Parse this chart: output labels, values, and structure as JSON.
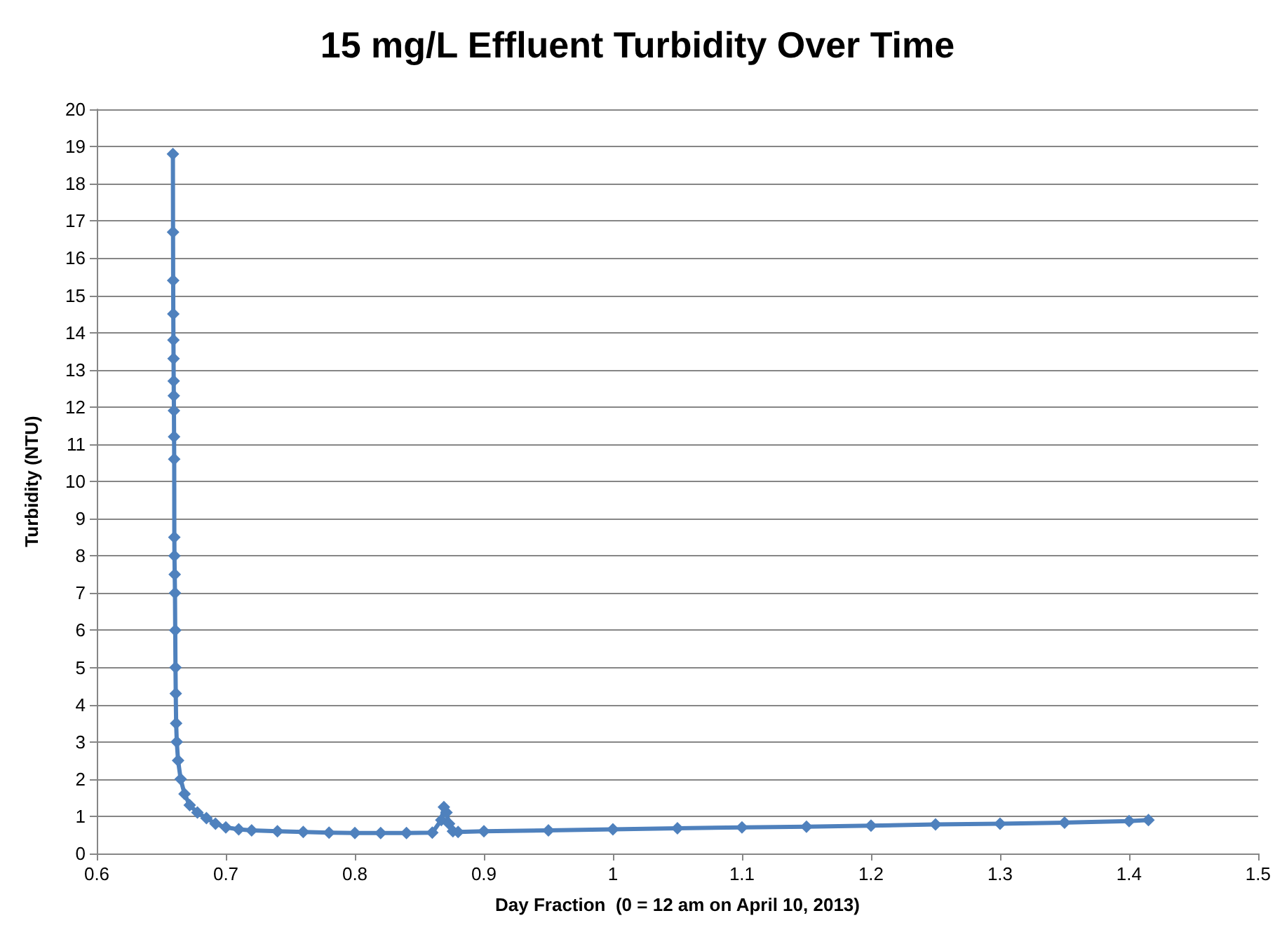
{
  "chart_data": {
    "type": "line",
    "title": "15 mg/L Effluent Turbidity Over Time",
    "xlabel": "Day Fraction  (0 = 12 am on April 10, 2013)",
    "ylabel": "Turbidity (NTU)",
    "series": [
      {
        "color": "#4f81bd",
        "x": [
          0.659,
          0.6591,
          0.6592,
          0.6593,
          0.6594,
          0.6595,
          0.6596,
          0.6597,
          0.6598,
          0.6599,
          0.66,
          0.6601,
          0.6602,
          0.6604,
          0.6606,
          0.6608,
          0.661,
          0.6612,
          0.6615,
          0.662,
          0.663,
          0.665,
          0.668,
          0.672,
          0.678,
          0.685,
          0.692,
          0.7,
          0.71,
          0.72,
          0.74,
          0.76,
          0.78,
          0.8,
          0.82,
          0.84,
          0.86,
          0.867,
          0.869,
          0.871,
          0.873,
          0.876,
          0.88,
          0.9,
          0.95,
          1.0,
          1.05,
          1.1,
          1.15,
          1.2,
          1.25,
          1.3,
          1.35,
          1.4,
          1.415
        ],
        "values": [
          18.8,
          16.7,
          15.4,
          14.5,
          13.8,
          13.3,
          12.7,
          12.3,
          11.9,
          11.2,
          10.6,
          8.5,
          8.0,
          7.5,
          7.0,
          6.0,
          5.0,
          4.3,
          3.5,
          3.0,
          2.5,
          2.0,
          1.6,
          1.3,
          1.1,
          0.95,
          0.8,
          0.7,
          0.65,
          0.62,
          0.6,
          0.58,
          0.56,
          0.55,
          0.55,
          0.55,
          0.56,
          0.9,
          1.25,
          1.1,
          0.8,
          0.6,
          0.58,
          0.6,
          0.62,
          0.65,
          0.68,
          0.7,
          0.72,
          0.75,
          0.78,
          0.8,
          0.83,
          0.87,
          0.9
        ]
      }
    ],
    "xlim": [
      0.6,
      1.5
    ],
    "xticks": [
      0.6,
      0.7,
      0.8,
      0.9,
      1,
      1.1,
      1.2,
      1.3,
      1.4,
      1.5
    ],
    "ylim": [
      0,
      20
    ],
    "yticks": [
      0,
      1,
      2,
      3,
      4,
      5,
      6,
      7,
      8,
      9,
      10,
      11,
      12,
      13,
      14,
      15,
      16,
      17,
      18,
      19,
      20
    ],
    "grid": "y",
    "marker": "diamond",
    "line_style": "solid"
  }
}
